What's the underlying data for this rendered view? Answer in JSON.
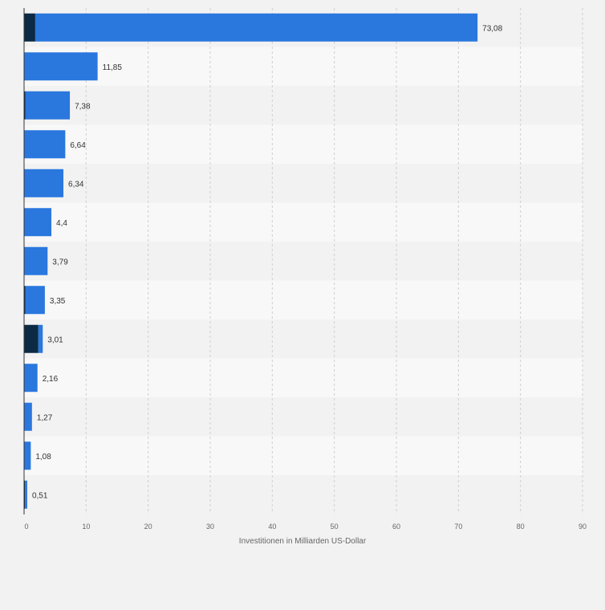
{
  "chart_data": {
    "type": "bar",
    "orientation": "horizontal",
    "stacked": true,
    "categories": [
      "",
      "",
      "",
      "",
      "",
      "",
      "",
      "",
      "",
      "",
      "",
      "",
      ""
    ],
    "series": [
      {
        "color": "#0d2a44",
        "values": [
          1.8,
          0,
          0.2,
          0,
          0,
          0,
          0,
          0.2,
          2.3,
          0,
          0,
          0,
          0.15
        ]
      },
      {
        "color": "#2a77de",
        "values": [
          71.28,
          11.85,
          7.18,
          6.64,
          6.34,
          4.4,
          3.79,
          3.15,
          0.71,
          2.16,
          1.27,
          1.08,
          0.36
        ]
      }
    ],
    "totals": [
      73.08,
      11.85,
      7.38,
      6.64,
      6.34,
      4.4,
      3.79,
      3.35,
      3.01,
      2.16,
      1.27,
      1.08,
      0.51
    ],
    "data_labels": [
      "73,08",
      "11,85",
      "7,38",
      "6,64",
      "6,34",
      "4,4",
      "3,79",
      "3,35",
      "3,01",
      "2,16",
      "1,27",
      "1,08",
      "0,51"
    ],
    "x_ticks": [
      0,
      10,
      20,
      30,
      40,
      50,
      60,
      70,
      80,
      90
    ],
    "x_tick_labels": [
      "0",
      "10",
      "20",
      "30",
      "40",
      "50",
      "60",
      "70",
      "80",
      "90"
    ],
    "xlim": [
      0,
      90
    ],
    "xlabel": "Investitionen in Milliarden US-Dollar",
    "ylabel": "",
    "title": "",
    "grid": true,
    "legend": "none"
  }
}
